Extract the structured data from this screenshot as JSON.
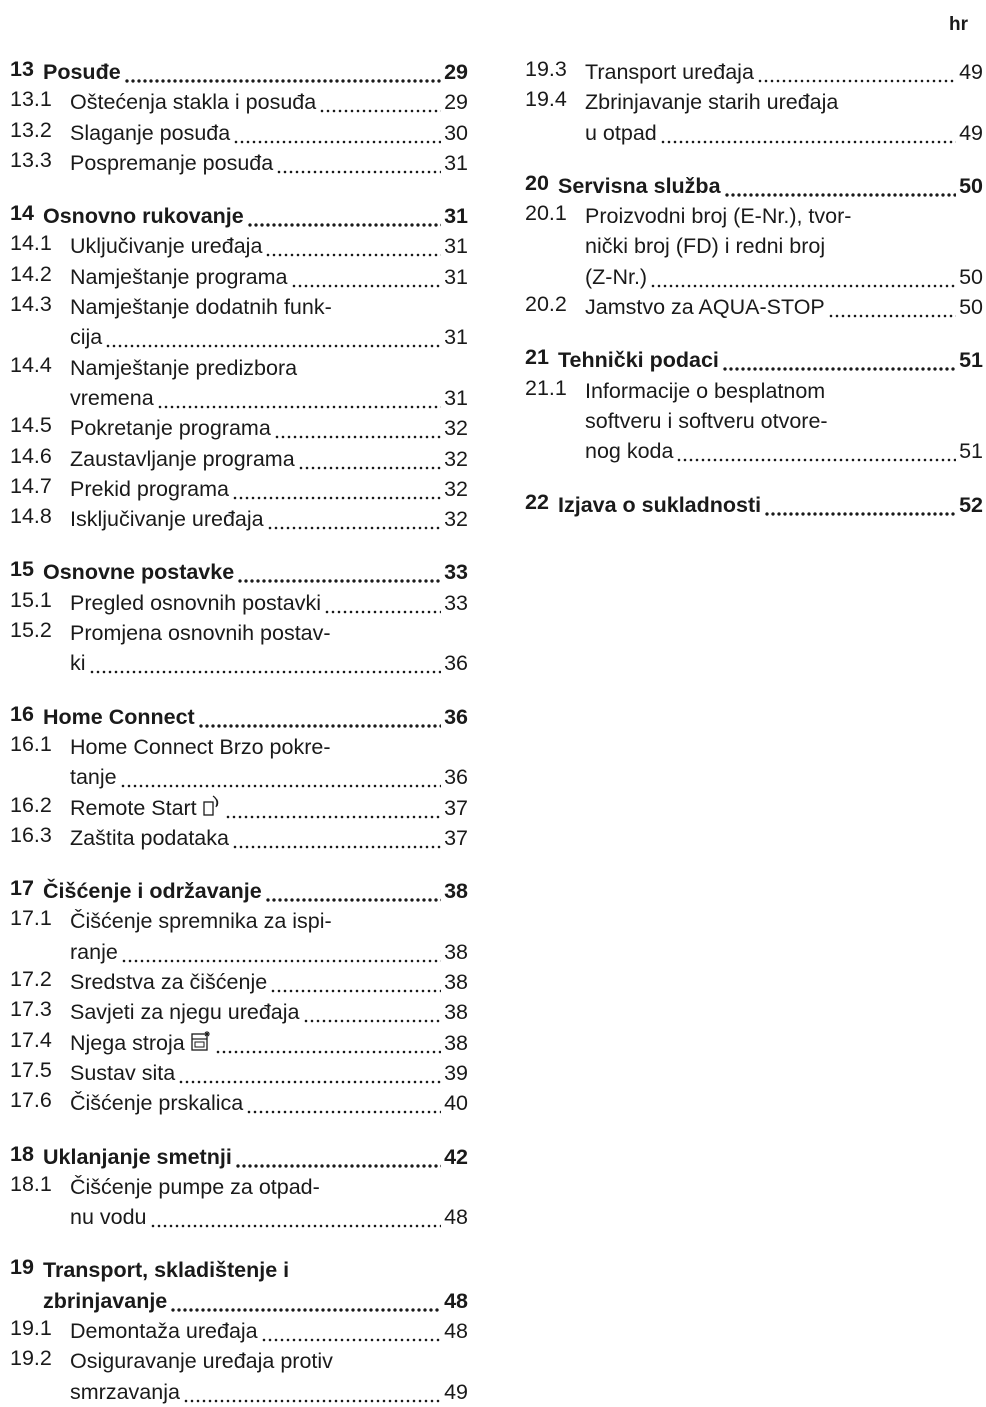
{
  "lang": "hr",
  "columns": [
    [
      [
        {
          "heading": true,
          "num": "13",
          "lines": [
            "Posuđe"
          ],
          "page": "29"
        },
        {
          "num": "13.1",
          "lines": [
            "Oštećenja stakla i posuđa"
          ],
          "page": "29"
        },
        {
          "num": "13.2",
          "lines": [
            "Slaganje posuđa"
          ],
          "page": "30"
        },
        {
          "num": "13.3",
          "lines": [
            "Pospremanje posuđa"
          ],
          "page": "31"
        }
      ],
      [
        {
          "heading": true,
          "num": "14",
          "lines": [
            "Osnovno rukovanje"
          ],
          "page": "31"
        },
        {
          "num": "14.1",
          "lines": [
            "Uključivanje uređaja"
          ],
          "page": "31"
        },
        {
          "num": "14.2",
          "lines": [
            "Namještanje programa"
          ],
          "page": "31"
        },
        {
          "num": "14.3",
          "lines": [
            "Namještanje dodatnih funk-",
            "cija"
          ],
          "page": "31"
        },
        {
          "num": "14.4",
          "lines": [
            "Namještanje predizbora",
            "vremena"
          ],
          "page": "31"
        },
        {
          "num": "14.5",
          "lines": [
            "Pokretanje programa"
          ],
          "page": "32"
        },
        {
          "num": "14.6",
          "lines": [
            "Zaustavljanje programa"
          ],
          "page": "32"
        },
        {
          "num": "14.7",
          "lines": [
            "Prekid programa"
          ],
          "page": "32"
        },
        {
          "num": "14.8",
          "lines": [
            "Isključivanje uređaja"
          ],
          "page": "32"
        }
      ],
      [
        {
          "heading": true,
          "num": "15",
          "lines": [
            "Osnovne postavke"
          ],
          "page": "33"
        },
        {
          "num": "15.1",
          "lines": [
            "Pregled osnovnih postavki"
          ],
          "page": "33"
        },
        {
          "num": "15.2",
          "lines": [
            "Promjena osnovnih postav-",
            "ki"
          ],
          "page": "36"
        }
      ],
      [
        {
          "heading": true,
          "num": "16",
          "lines": [
            "Home Connect"
          ],
          "page": "36"
        },
        {
          "num": "16.1",
          "lines": [
            "Home Connect Brzo pokre-",
            "tanje"
          ],
          "page": "36"
        },
        {
          "num": "16.2",
          "lines": [
            "Remote Start"
          ],
          "page": "37"
        },
        {
          "num": "16.3",
          "lines": [
            "Zaštita podataka"
          ],
          "page": "37"
        }
      ],
      [
        {
          "heading": true,
          "num": "17",
          "lines": [
            "Čišćenje i održavanje"
          ],
          "page": "38"
        },
        {
          "num": "17.1",
          "lines": [
            "Čišćenje spremnika za ispi-",
            "ranje"
          ],
          "page": "38"
        },
        {
          "num": "17.2",
          "lines": [
            "Sredstva za čišćenje"
          ],
          "page": "38"
        },
        {
          "num": "17.3",
          "lines": [
            "Savjeti za njegu uređaja"
          ],
          "page": "38"
        },
        {
          "num": "17.4",
          "lines": [
            "Njega stroja"
          ],
          "page": "38"
        },
        {
          "num": "17.5",
          "lines": [
            "Sustav sita"
          ],
          "page": "39"
        },
        {
          "num": "17.6",
          "lines": [
            "Čišćenje prskalica"
          ],
          "page": "40"
        }
      ],
      [
        {
          "heading": true,
          "num": "18",
          "lines": [
            "Uklanjanje smetnji"
          ],
          "page": "42"
        },
        {
          "num": "18.1",
          "lines": [
            "Čišćenje pumpe za otpad-",
            "nu vodu"
          ],
          "page": "48"
        }
      ],
      [
        {
          "heading": true,
          "num": "19",
          "lines": [
            "Transport, skladištenje i",
            "zbrinjavanje"
          ],
          "page": "48"
        },
        {
          "num": "19.1",
          "lines": [
            "Demontaža uređaja"
          ],
          "page": "48"
        },
        {
          "num": "19.2",
          "lines": [
            "Osiguravanje uređaja protiv",
            "smrzavanja"
          ],
          "page": "49"
        }
      ]
    ],
    [
      [
        {
          "num": "19.3",
          "lines": [
            "Transport uređaja"
          ],
          "page": "49"
        },
        {
          "num": "19.4",
          "lines": [
            "Zbrinjavanje starih uređaja",
            "u otpad"
          ],
          "page": "49"
        }
      ],
      [
        {
          "heading": true,
          "num": "20",
          "lines": [
            "Servisna služba"
          ],
          "page": "50"
        },
        {
          "num": "20.1",
          "lines": [
            "Proizvodni broj (E-Nr.), tvor-",
            "nički broj (FD) i redni broj",
            "(Z-Nr.)"
          ],
          "page": "50"
        },
        {
          "num": "20.2",
          "lines": [
            "Jamstvo za AQUA-STOP"
          ],
          "page": "50"
        }
      ],
      [
        {
          "heading": true,
          "num": "21",
          "lines": [
            "Tehnički podaci"
          ],
          "page": "51"
        },
        {
          "num": "21.1",
          "lines": [
            "Informacije o besplatnom",
            "softveru i softveru otvore-",
            "nog koda"
          ],
          "page": "51"
        }
      ],
      [
        {
          "heading": true,
          "num": "22",
          "lines": [
            "Izjava o sukladnosti"
          ],
          "page": "52"
        }
      ]
    ]
  ]
}
